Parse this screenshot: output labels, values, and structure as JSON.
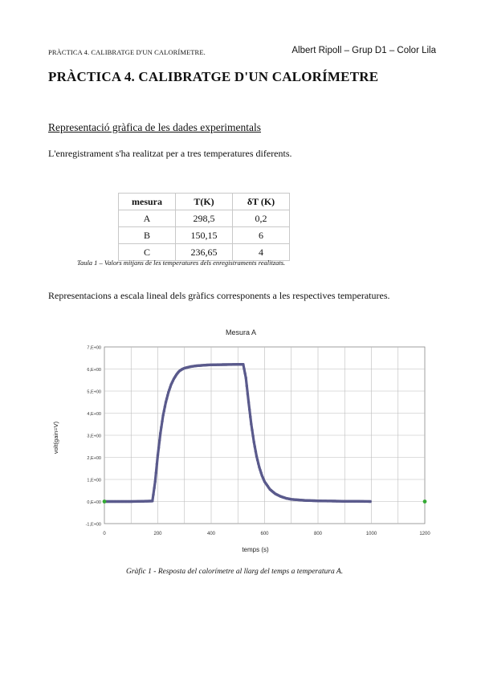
{
  "header": {
    "left": "PRÀCTICA 4. CALIBRATGE D'UN CALORÍMETRE.",
    "right": "Albert Ripoll – Grup D1 – Color Lila"
  },
  "title": "PRÀCTICA 4. CALIBRATGE D'UN CALORÍMETRE",
  "section_title": "Representació gràfica de les dades experimentals",
  "para1": "L'enregistrament s'ha realitzat per a tres temperatures diferents.",
  "table": {
    "headers": [
      "mesura",
      "T(K)",
      "δT (K)"
    ],
    "rows": [
      [
        "A",
        "298,5",
        "0,2"
      ],
      [
        "B",
        "150,15",
        "6"
      ],
      [
        "C",
        "236,65",
        "4"
      ]
    ],
    "caption": "Taula 1 – Valors mitjans de les temperatures dels enregistraments realitzats."
  },
  "para2": "Representacions a escala lineal dels gràfics corresponents a les respectives temperatures.",
  "figure_caption": "Gràfic 1 - Resposta del calorímetre al llarg del temps a temperatura A.",
  "chart_data": {
    "type": "line",
    "title": "Mesura A",
    "xlabel": "temps (s)",
    "ylabel": "volt(gain=V)",
    "xlim": [
      0,
      1200
    ],
    "ylim": [
      -1,
      7
    ],
    "x_ticks": [
      "0",
      "200",
      "400",
      "600",
      "800",
      "1000",
      "1200"
    ],
    "y_ticks": [
      "-1,E+00",
      "0,E+00",
      "1,E+00",
      "2,E+00",
      "3,E+00",
      "4,E+00",
      "5,E+00",
      "6,E+00",
      "7,E+00"
    ],
    "grid": true,
    "series": [
      {
        "color": "#5a5a8c",
        "x": [
          0,
          100,
          180,
          190,
          200,
          210,
          220,
          230,
          240,
          250,
          260,
          270,
          280,
          290,
          300,
          320,
          340,
          360,
          380,
          400,
          450,
          500,
          520,
          530,
          540,
          550,
          560,
          570,
          580,
          590,
          600,
          620,
          640,
          660,
          680,
          700,
          750,
          800,
          850,
          900,
          950,
          1000
        ],
        "y": [
          0,
          0,
          0.02,
          0.9,
          2.1,
          3.1,
          3.9,
          4.5,
          4.95,
          5.3,
          5.55,
          5.75,
          5.9,
          5.98,
          6.04,
          6.1,
          6.14,
          6.16,
          6.18,
          6.19,
          6.2,
          6.21,
          6.21,
          5.6,
          4.5,
          3.5,
          2.7,
          2.05,
          1.55,
          1.18,
          0.9,
          0.55,
          0.35,
          0.23,
          0.15,
          0.1,
          0.05,
          0.03,
          0.02,
          0.01,
          0.01,
          0
        ]
      },
      {
        "color": "#33aa33",
        "x": [
          0,
          1200
        ],
        "y": [
          0,
          0
        ]
      }
    ]
  }
}
